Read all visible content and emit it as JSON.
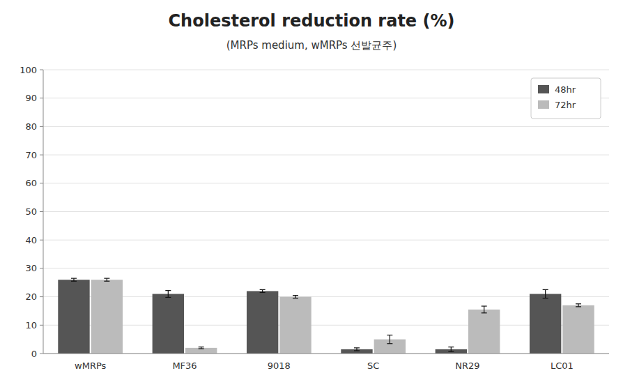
{
  "chart_data": {
    "type": "bar",
    "title": "Cholesterol reduction rate (%)",
    "subtitle": "(MRPs medium, wMRPs 선발균주)",
    "categories": [
      "wMRPs",
      "MF36",
      "9018",
      "SC",
      "NR29",
      "LC01"
    ],
    "series": [
      {
        "name": "48hr",
        "color": "#555555",
        "values": [
          26,
          21,
          22,
          1.5,
          1.5,
          21
        ],
        "errors": [
          0.5,
          1.2,
          0.5,
          0.5,
          0.8,
          1.5
        ]
      },
      {
        "name": "72hr",
        "color": "#bbbbbb",
        "values": [
          26,
          2,
          20,
          5,
          15.5,
          17
        ],
        "errors": [
          0.5,
          0.3,
          0.5,
          1.5,
          1.2,
          0.5
        ]
      }
    ],
    "ylim": [
      0,
      100
    ],
    "yticks": [
      0,
      10,
      20,
      30,
      40,
      50,
      60,
      70,
      80,
      90,
      100
    ],
    "grid": true,
    "legend": "upper right"
  }
}
